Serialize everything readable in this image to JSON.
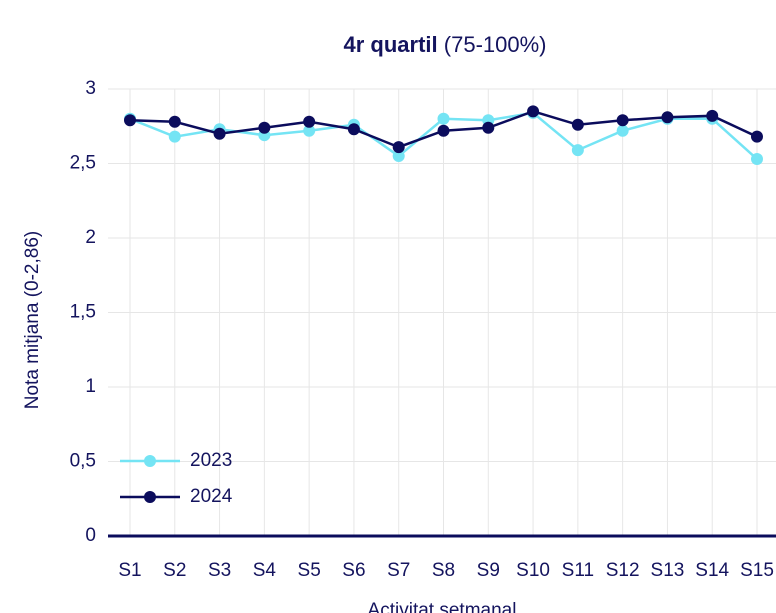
{
  "chart_data": {
    "type": "line",
    "title": "4r quartil",
    "subtitle": "(75-100%)",
    "y_label": "Nota mitjana (0-2,86)",
    "x_label": "Activitat setmanal",
    "categories": [
      "S1",
      "S2",
      "S3",
      "S4",
      "S5",
      "S6",
      "S7",
      "S8",
      "S9",
      "S10",
      "S11",
      "S12",
      "S13",
      "S14",
      "S15"
    ],
    "series": [
      {
        "name": "2023",
        "color": "#74e4f4",
        "values": [
          2.8,
          2.68,
          2.73,
          2.69,
          2.72,
          2.76,
          2.55,
          2.8,
          2.79,
          2.84,
          2.59,
          2.72,
          2.8,
          2.8,
          2.53
        ]
      },
      {
        "name": "2024",
        "color": "#0b0c5c",
        "values": [
          2.79,
          2.78,
          2.7,
          2.74,
          2.78,
          2.73,
          2.61,
          2.72,
          2.74,
          2.85,
          2.76,
          2.79,
          2.81,
          2.82,
          2.68
        ]
      }
    ],
    "ylim": [
      0,
      3
    ],
    "yticks": [
      0,
      {
        "value": 0.5,
        "label": "0,5"
      },
      1,
      {
        "value": 1.5,
        "label": "1,5"
      },
      2,
      {
        "value": 2.5,
        "label": "2,5"
      },
      3
    ],
    "grid": true,
    "legend": "lower left"
  }
}
